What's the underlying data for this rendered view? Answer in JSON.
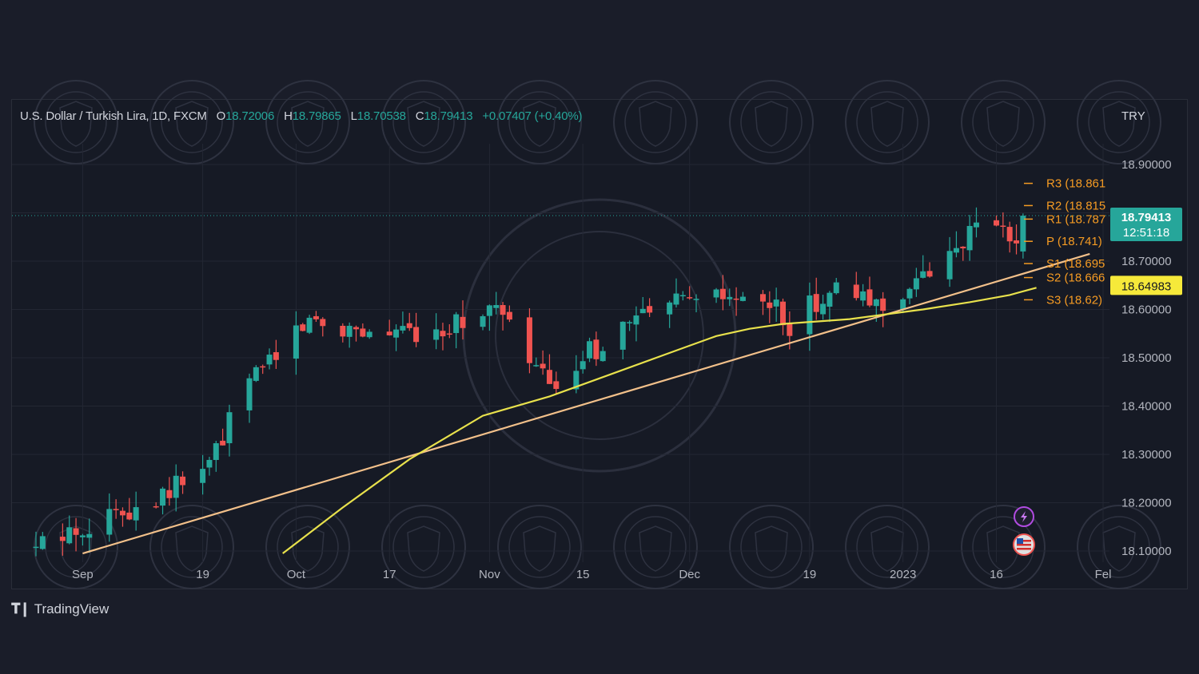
{
  "legend": {
    "symbol": "U.S. Dollar / Turkish Lira, 1D, FXCM",
    "open_label": "O",
    "open": "18.72006",
    "high_label": "H",
    "high": "18.79865",
    "low_label": "L",
    "low": "18.70538",
    "close_label": "C",
    "close": "18.79413",
    "change": "+0.07407 (+0.40%)"
  },
  "brand": {
    "name": "TradingView"
  },
  "colors": {
    "up": "#26a69a",
    "down": "#ef5350",
    "pivot": "#f59b23",
    "trendline": "#f2c08a",
    "moving_average": "#e8e14c",
    "price_label_bg": "#26a69a",
    "ma_label_bg": "#f6e93a"
  },
  "chart_data": {
    "type": "candlestick",
    "currency": "TRY",
    "ylim": [
      18.08,
      18.98
    ],
    "yticks": [
      "18.90000",
      "18.80000",
      "18.70000",
      "18.60000",
      "18.50000",
      "18.40000",
      "18.30000",
      "18.20000",
      "18.10000"
    ],
    "ytick_values": [
      18.9,
      18.8,
      18.7,
      18.6,
      18.5,
      18.4,
      18.3,
      18.2,
      18.1
    ],
    "x_date_range": [
      "2022-08-25",
      "2023-02-01"
    ],
    "xticks": [
      {
        "label": "Sep",
        "date": "2022-09-01"
      },
      {
        "label": "19",
        "date": "2022-09-19"
      },
      {
        "label": "Oct",
        "date": "2022-10-03"
      },
      {
        "label": "17",
        "date": "2022-10-17"
      },
      {
        "label": "Nov",
        "date": "2022-11-01"
      },
      {
        "label": "15",
        "date": "2022-11-15"
      },
      {
        "label": "Dec",
        "date": "2022-12-01"
      },
      {
        "label": "19",
        "date": "2022-12-19"
      },
      {
        "label": "2023",
        "date": "2023-01-02"
      },
      {
        "label": "16",
        "date": "2023-01-16"
      },
      {
        "label": "Fel",
        "date": "2023-02-01"
      }
    ],
    "anchors": [
      [
        "2022-08-25",
        18.105
      ],
      [
        "2022-09-01",
        18.15
      ],
      [
        "2022-09-08",
        18.19
      ],
      [
        "2022-09-15",
        18.235
      ],
      [
        "2022-09-20",
        18.28
      ],
      [
        "2022-09-26",
        18.45
      ],
      [
        "2022-09-30",
        18.52
      ],
      [
        "2022-10-05",
        18.58
      ],
      [
        "2022-10-12",
        18.56
      ],
      [
        "2022-10-19",
        18.55
      ],
      [
        "2022-10-26",
        18.57
      ],
      [
        "2022-11-02",
        18.6
      ],
      [
        "2022-11-08",
        18.48
      ],
      [
        "2022-11-11",
        18.42
      ],
      [
        "2022-11-15",
        18.5
      ],
      [
        "2022-11-22",
        18.57
      ],
      [
        "2022-11-29",
        18.61
      ],
      [
        "2022-12-06",
        18.62
      ],
      [
        "2022-12-13",
        18.61
      ],
      [
        "2022-12-16",
        18.57
      ],
      [
        "2022-12-22",
        18.64
      ],
      [
        "2022-12-29",
        18.61
      ],
      [
        "2023-01-05",
        18.66
      ],
      [
        "2023-01-10",
        18.74
      ],
      [
        "2023-01-16",
        18.78
      ],
      [
        "2023-01-19",
        18.72
      ],
      [
        "2023-01-20",
        18.794
      ]
    ],
    "last_candle": {
      "date": "2023-01-20",
      "open": 18.72006,
      "high": 18.79865,
      "low": 18.70538,
      "close": 18.79413
    },
    "pivots": [
      {
        "label": "R3 (18.861",
        "value": 18.861
      },
      {
        "label": "R2 (18.815",
        "value": 18.815
      },
      {
        "label": "R1 (18.787",
        "value": 18.787
      },
      {
        "label": "P (18.741)",
        "value": 18.741
      },
      {
        "label": "S1 (18.695",
        "value": 18.695
      },
      {
        "label": "S2 (18.666",
        "value": 18.666
      },
      {
        "label": "S3 (18.62)",
        "value": 18.62
      }
    ],
    "trendline": [
      [
        "2022-09-01",
        18.095
      ],
      [
        "2023-01-30",
        18.715
      ]
    ],
    "moving_average": [
      [
        "2022-10-01",
        18.095
      ],
      [
        "2022-10-10",
        18.19
      ],
      [
        "2022-10-20",
        18.29
      ],
      [
        "2022-10-31",
        18.38
      ],
      [
        "2022-11-10",
        18.42
      ],
      [
        "2022-11-20",
        18.47
      ],
      [
        "2022-11-30",
        18.52
      ],
      [
        "2022-12-05",
        18.545
      ],
      [
        "2022-12-10",
        18.56
      ],
      [
        "2022-12-15",
        18.57
      ],
      [
        "2022-12-25",
        18.58
      ],
      [
        "2023-01-05",
        18.6
      ],
      [
        "2023-01-12",
        18.615
      ],
      [
        "2023-01-18",
        18.63
      ],
      [
        "2023-01-22",
        18.645
      ]
    ],
    "price_label": {
      "value": "18.79413",
      "countdown": "12:51:18"
    },
    "ma_label": {
      "value": "18.64983"
    }
  }
}
